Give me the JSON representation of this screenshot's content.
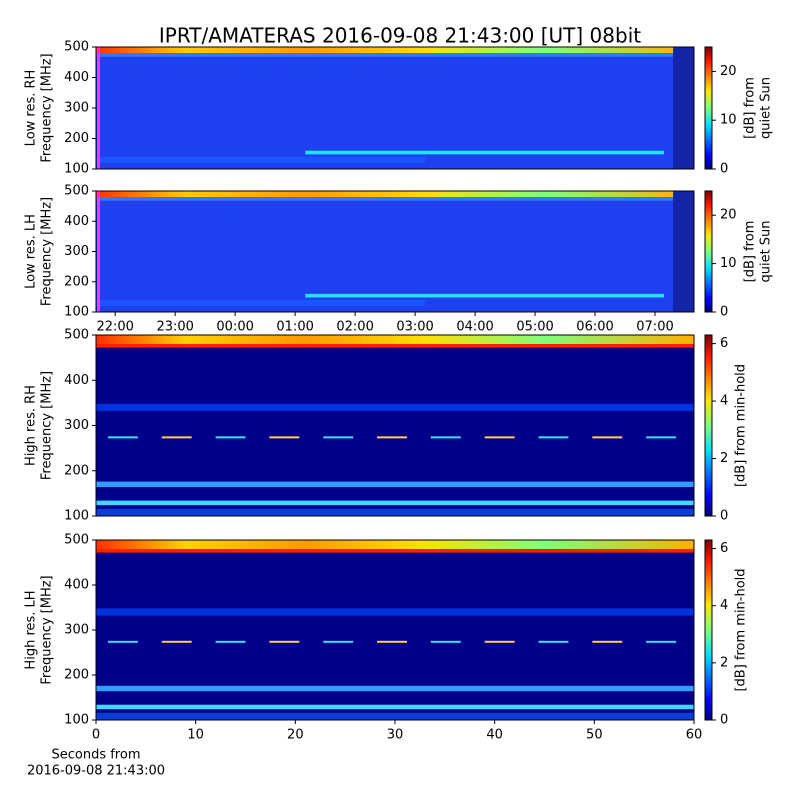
{
  "title": "IPRT/AMATERAS 2016-09-08 21:43:00 [UT]   08bit",
  "chart_data": [
    {
      "type": "heatmap",
      "ylabel": [
        "Low res. RH",
        "Frequency [MHz]"
      ],
      "ylim": [
        100,
        500
      ],
      "yticks": [
        100,
        200,
        300,
        400,
        500
      ],
      "colorbar": {
        "label": [
          "[dB] from",
          "quiet Sun"
        ],
        "lim": [
          0,
          25
        ],
        "ticks": [
          0,
          10,
          20
        ]
      }
    },
    {
      "type": "heatmap",
      "ylabel": [
        "Low res. LH",
        "Frequency [MHz]"
      ],
      "ylim": [
        100,
        500
      ],
      "yticks": [
        100,
        200,
        300,
        400,
        500
      ],
      "xlim": [
        21.68,
        31.65
      ],
      "xticks": [
        {
          "value": 22,
          "label": "22:00"
        },
        {
          "value": 23,
          "label": "23:00"
        },
        {
          "value": 24,
          "label": "00:00"
        },
        {
          "value": 25,
          "label": "01:00"
        },
        {
          "value": 26,
          "label": "02:00"
        },
        {
          "value": 27,
          "label": "03:00"
        },
        {
          "value": 28,
          "label": "04:00"
        },
        {
          "value": 29,
          "label": "05:00"
        },
        {
          "value": 30,
          "label": "06:00"
        },
        {
          "value": 31,
          "label": "07:00"
        }
      ],
      "colorbar": {
        "label": [
          "[dB] from",
          "quiet Sun"
        ],
        "lim": [
          0,
          25
        ],
        "ticks": [
          0,
          10,
          20
        ]
      }
    },
    {
      "type": "heatmap",
      "ylabel": [
        "High res. RH",
        "Frequency [MHz]"
      ],
      "ylim": [
        100,
        500
      ],
      "yticks": [
        100,
        200,
        300,
        400,
        500
      ],
      "colorbar": {
        "label": [
          "[dB] from min-hold"
        ],
        "lim": [
          0,
          6.3
        ],
        "ticks": [
          0,
          2,
          4,
          6
        ]
      }
    },
    {
      "type": "heatmap",
      "ylabel": [
        "High res. LH",
        "Frequency [MHz]"
      ],
      "ylim": [
        100,
        500
      ],
      "yticks": [
        100,
        200,
        300,
        400,
        500
      ],
      "xlim": [
        0,
        60
      ],
      "xticks": [
        0,
        10,
        20,
        30,
        40,
        50,
        60
      ],
      "xlabel": [
        "Seconds from",
        "2016-09-08 21:43:00"
      ],
      "colorbar": {
        "label": [
          "[dB] from min-hold"
        ],
        "lim": [
          0,
          6.3
        ],
        "ticks": [
          0,
          2,
          4,
          6
        ]
      }
    }
  ]
}
